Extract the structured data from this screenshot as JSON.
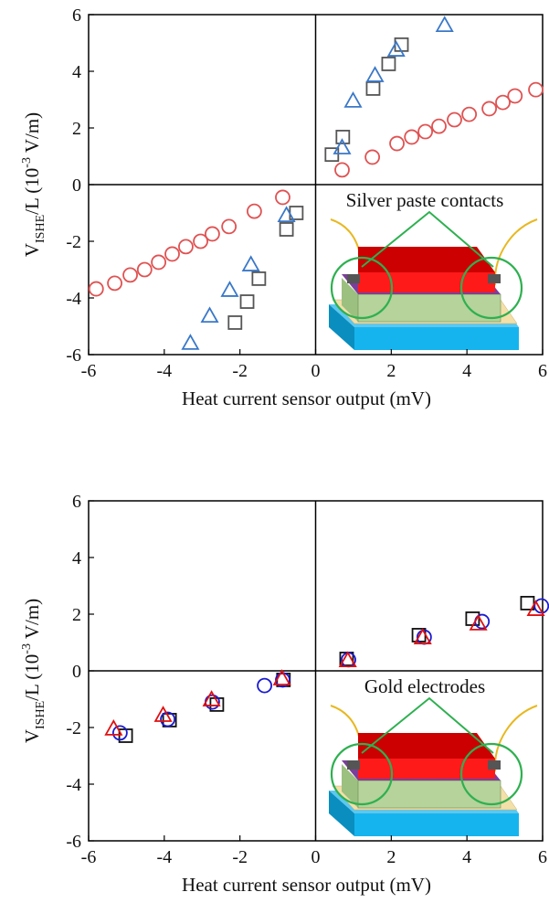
{
  "chart_data": [
    {
      "type": "scatter",
      "annotation": "Silver paste contacts",
      "xlabel": "Heat current sensor output (mV)",
      "ylabel": {
        "main": "V",
        "sub": "ISHE",
        "mid": "/L (10",
        "sup": "-3",
        "end": " V/m)"
      },
      "xlim": [
        -6,
        6
      ],
      "ylim": [
        -6,
        6
      ],
      "xticks": [
        -6,
        -4,
        -2,
        0,
        2,
        4,
        6
      ],
      "yticks": [
        -6,
        -4,
        -2,
        0,
        2,
        4,
        6
      ],
      "series": [
        {
          "marker": "square",
          "color": "#555555",
          "x": [
            0.43,
            0.72,
            1.52,
            1.93,
            2.27,
            -0.51,
            -0.77,
            -1.5,
            -1.81,
            -2.13
          ],
          "y": [
            1.06,
            1.68,
            3.39,
            4.26,
            4.94,
            -1.0,
            -1.58,
            -3.32,
            -4.13,
            -4.87
          ]
        },
        {
          "marker": "triangle",
          "color": "#3a78c8",
          "x": [
            0.7,
            0.99,
            1.57,
            2.13,
            3.41,
            -0.77,
            -1.71,
            -2.27,
            -2.8,
            -3.31
          ],
          "y": [
            1.29,
            2.94,
            3.84,
            4.74,
            5.61,
            -1.1,
            -2.84,
            -3.74,
            -4.65,
            -5.61
          ]
        },
        {
          "marker": "circle",
          "color": "#e05252",
          "x": [
            0.7,
            1.5,
            2.15,
            2.54,
            2.9,
            3.26,
            3.67,
            4.06,
            4.59,
            4.95,
            5.27,
            5.82,
            -0.87,
            -1.62,
            -2.29,
            -2.73,
            -3.04,
            -3.43,
            -3.79,
            -4.15,
            -4.52,
            -4.9,
            -5.31,
            -5.8
          ],
          "y": [
            0.52,
            0.97,
            1.45,
            1.68,
            1.87,
            2.06,
            2.29,
            2.48,
            2.68,
            2.9,
            3.13,
            3.35,
            -0.45,
            -0.94,
            -1.48,
            -1.74,
            -2.0,
            -2.19,
            -2.45,
            -2.74,
            -3.0,
            -3.19,
            -3.48,
            -3.68
          ]
        }
      ]
    },
    {
      "type": "scatter",
      "annotation": "Gold electrodes",
      "xlabel": "Heat current sensor output (mV)",
      "ylabel": {
        "main": "V",
        "sub": "ISHE",
        "mid": "/L (10",
        "sup": "-3",
        "end": " V/m)"
      },
      "xlim": [
        -6,
        6
      ],
      "ylim": [
        -6,
        6
      ],
      "xticks": [
        -6,
        -4,
        -2,
        0,
        2,
        4,
        6
      ],
      "yticks": [
        -6,
        -4,
        -2,
        0,
        2,
        4,
        6
      ],
      "series": [
        {
          "marker": "square",
          "color": "#111111",
          "x": [
            5.6,
            4.15,
            2.73,
            0.82,
            -0.85,
            -2.61,
            -3.86,
            -5.02
          ],
          "y": [
            2.39,
            1.84,
            1.26,
            0.42,
            -0.32,
            -1.19,
            -1.74,
            -2.29
          ]
        },
        {
          "marker": "circle",
          "color": "#1a1ad0",
          "x": [
            5.97,
            4.4,
            2.87,
            0.87,
            -0.87,
            -1.35,
            -2.73,
            -3.91,
            -5.17
          ],
          "y": [
            2.29,
            1.74,
            1.19,
            0.39,
            -0.32,
            -0.52,
            -1.1,
            -1.71,
            -2.19
          ]
        },
        {
          "marker": "triangle",
          "color": "#e01010",
          "x": [
            5.82,
            4.3,
            2.83,
            0.85,
            -0.89,
            -2.75,
            -4.03,
            -5.34
          ],
          "y": [
            2.16,
            1.65,
            1.16,
            0.35,
            -0.29,
            -1.03,
            -1.58,
            -2.06
          ]
        }
      ]
    }
  ]
}
